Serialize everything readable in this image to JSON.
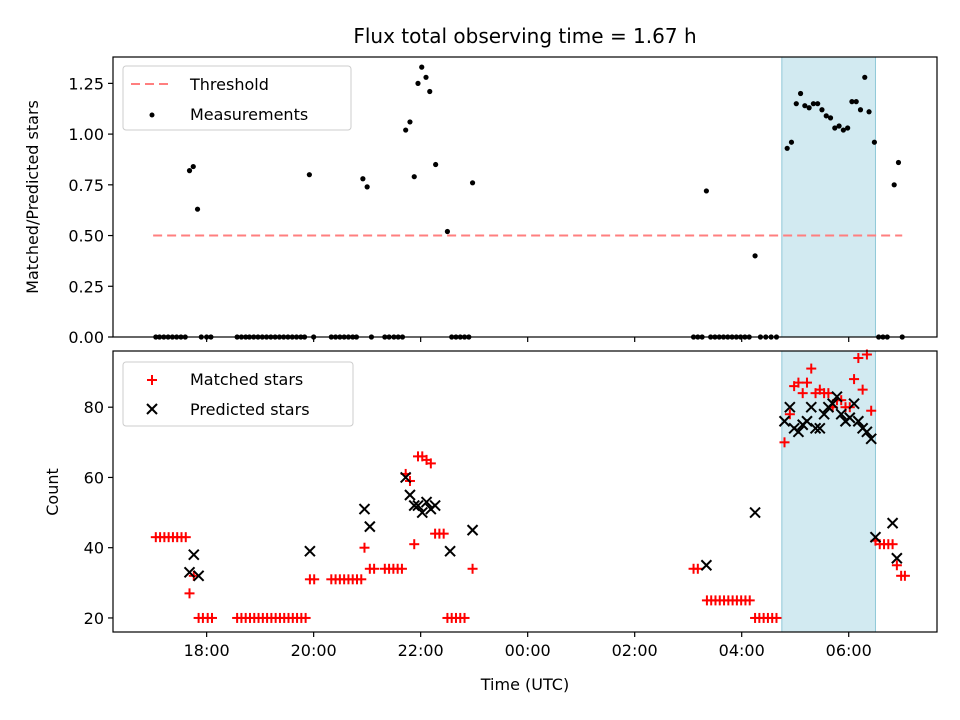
{
  "title": "Flux total observing time = 1.67 h",
  "colors": {
    "threshold": "#ff7f7f",
    "measurement": "#000000",
    "matched": "#ff0000",
    "predicted": "#000000",
    "highlight": "#add8e6"
  },
  "chart_data": [
    {
      "type": "scatter",
      "panel": "top",
      "ylabel": "Matched/Predicted stars",
      "xlabel": "",
      "ylim": [
        0,
        1.38
      ],
      "yticks": [
        "0.00",
        "0.25",
        "0.50",
        "0.75",
        "1.00",
        "1.25"
      ],
      "legend": {
        "placement": "top-left",
        "entries": [
          "Threshold",
          "Measurements"
        ]
      },
      "threshold": {
        "name": "Threshold",
        "value": 0.5,
        "x": [
          17.0,
          31.0
        ]
      },
      "highlight_span": [
        28.75,
        30.5
      ],
      "series": [
        {
          "name": "Measurements",
          "points": [
            [
              17.05,
              0
            ],
            [
              17.12,
              0
            ],
            [
              17.2,
              0
            ],
            [
              17.28,
              0
            ],
            [
              17.36,
              0
            ],
            [
              17.44,
              0
            ],
            [
              17.52,
              0
            ],
            [
              17.6,
              0
            ],
            [
              17.68,
              0.82
            ],
            [
              17.75,
              0.84
            ],
            [
              17.83,
              0.63
            ],
            [
              17.9,
              0
            ],
            [
              18.0,
              0
            ],
            [
              18.08,
              0
            ],
            [
              18.57,
              0
            ],
            [
              18.65,
              0
            ],
            [
              18.73,
              0
            ],
            [
              18.8,
              0
            ],
            [
              18.88,
              0
            ],
            [
              18.96,
              0
            ],
            [
              19.04,
              0
            ],
            [
              19.12,
              0
            ],
            [
              19.2,
              0
            ],
            [
              19.28,
              0
            ],
            [
              19.36,
              0
            ],
            [
              19.44,
              0
            ],
            [
              19.52,
              0
            ],
            [
              19.6,
              0
            ],
            [
              19.68,
              0
            ],
            [
              19.76,
              0
            ],
            [
              19.83,
              0
            ],
            [
              19.92,
              0.8
            ],
            [
              20.0,
              0
            ],
            [
              20.33,
              0
            ],
            [
              20.41,
              0
            ],
            [
              20.49,
              0
            ],
            [
              20.57,
              0
            ],
            [
              20.65,
              0
            ],
            [
              20.73,
              0
            ],
            [
              20.8,
              0
            ],
            [
              20.92,
              0.78
            ],
            [
              21.0,
              0.74
            ],
            [
              21.08,
              0
            ],
            [
              21.33,
              0
            ],
            [
              21.41,
              0
            ],
            [
              21.5,
              0
            ],
            [
              21.58,
              0
            ],
            [
              21.66,
              0
            ],
            [
              21.72,
              1.02
            ],
            [
              21.8,
              1.06
            ],
            [
              21.88,
              0.79
            ],
            [
              21.95,
              1.25
            ],
            [
              22.02,
              1.33
            ],
            [
              22.1,
              1.28
            ],
            [
              22.17,
              1.21
            ],
            [
              22.28,
              0.85
            ],
            [
              22.5,
              0.52
            ],
            [
              22.58,
              0
            ],
            [
              22.66,
              0
            ],
            [
              22.74,
              0
            ],
            [
              22.82,
              0
            ],
            [
              22.9,
              0
            ],
            [
              22.97,
              0.76
            ],
            [
              27.1,
              0
            ],
            [
              27.18,
              0
            ],
            [
              27.26,
              0
            ],
            [
              27.34,
              0.72
            ],
            [
              27.42,
              0
            ],
            [
              27.5,
              0
            ],
            [
              27.58,
              0
            ],
            [
              27.66,
              0
            ],
            [
              27.74,
              0
            ],
            [
              27.82,
              0
            ],
            [
              27.9,
              0
            ],
            [
              27.98,
              0
            ],
            [
              28.06,
              0
            ],
            [
              28.14,
              0
            ],
            [
              28.25,
              0.4
            ],
            [
              28.35,
              0
            ],
            [
              28.45,
              0
            ],
            [
              28.55,
              0
            ],
            [
              28.65,
              0
            ],
            [
              28.85,
              0.93
            ],
            [
              28.93,
              0.96
            ],
            [
              29.02,
              1.15
            ],
            [
              29.1,
              1.2
            ],
            [
              29.18,
              1.14
            ],
            [
              29.26,
              1.13
            ],
            [
              29.34,
              1.15
            ],
            [
              29.42,
              1.15
            ],
            [
              29.5,
              1.12
            ],
            [
              29.58,
              1.09
            ],
            [
              29.66,
              1.08
            ],
            [
              29.74,
              1.03
            ],
            [
              29.82,
              1.04
            ],
            [
              29.9,
              1.02
            ],
            [
              29.98,
              1.03
            ],
            [
              30.06,
              1.16
            ],
            [
              30.14,
              1.16
            ],
            [
              30.22,
              1.12
            ],
            [
              30.3,
              1.28
            ],
            [
              30.38,
              1.11
            ],
            [
              30.48,
              0.96
            ],
            [
              30.56,
              0
            ],
            [
              30.64,
              0
            ],
            [
              30.72,
              0
            ],
            [
              30.85,
              0.75
            ],
            [
              30.93,
              0.86
            ],
            [
              31.0,
              0
            ]
          ]
        }
      ]
    },
    {
      "type": "scatter",
      "panel": "bottom",
      "ylabel": "Count",
      "xlabel": "Time (UTC)",
      "ylim": [
        16,
        96
      ],
      "yticks": [
        "20",
        "40",
        "60",
        "80"
      ],
      "xticks": [
        "18:00",
        "20:00",
        "22:00",
        "00:00",
        "02:00",
        "04:00",
        "06:00"
      ],
      "legend": {
        "placement": "top-left",
        "entries": [
          "Matched stars",
          "Predicted stars"
        ]
      },
      "highlight_span": [
        28.75,
        30.5
      ],
      "series": [
        {
          "name": "Matched stars",
          "marker": "plus",
          "points": [
            [
              17.05,
              43
            ],
            [
              17.13,
              43
            ],
            [
              17.21,
              43
            ],
            [
              17.29,
              43
            ],
            [
              17.37,
              43
            ],
            [
              17.45,
              43
            ],
            [
              17.53,
              43
            ],
            [
              17.61,
              43
            ],
            [
              17.68,
              27
            ],
            [
              17.76,
              32
            ],
            [
              17.85,
              20
            ],
            [
              17.93,
              20
            ],
            [
              18.02,
              20
            ],
            [
              18.1,
              20
            ],
            [
              18.57,
              20
            ],
            [
              18.65,
              20
            ],
            [
              18.73,
              20
            ],
            [
              18.81,
              20
            ],
            [
              18.89,
              20
            ],
            [
              18.97,
              20
            ],
            [
              19.05,
              20
            ],
            [
              19.13,
              20
            ],
            [
              19.21,
              20
            ],
            [
              19.29,
              20
            ],
            [
              19.37,
              20
            ],
            [
              19.45,
              20
            ],
            [
              19.53,
              20
            ],
            [
              19.61,
              20
            ],
            [
              19.69,
              20
            ],
            [
              19.77,
              20
            ],
            [
              19.85,
              20
            ],
            [
              19.93,
              31
            ],
            [
              20.01,
              31
            ],
            [
              20.33,
              31
            ],
            [
              20.41,
              31
            ],
            [
              20.49,
              31
            ],
            [
              20.57,
              31
            ],
            [
              20.65,
              31
            ],
            [
              20.73,
              31
            ],
            [
              20.81,
              31
            ],
            [
              20.89,
              31
            ],
            [
              20.95,
              40
            ],
            [
              21.05,
              34
            ],
            [
              21.13,
              34
            ],
            [
              21.33,
              34
            ],
            [
              21.41,
              34
            ],
            [
              21.49,
              34
            ],
            [
              21.57,
              34
            ],
            [
              21.65,
              34
            ],
            [
              21.72,
              61
            ],
            [
              21.8,
              59
            ],
            [
              21.88,
              41
            ],
            [
              21.95,
              66
            ],
            [
              22.03,
              66
            ],
            [
              22.11,
              65
            ],
            [
              22.19,
              64
            ],
            [
              22.27,
              44
            ],
            [
              22.35,
              44
            ],
            [
              22.43,
              44
            ],
            [
              22.5,
              20
            ],
            [
              22.58,
              20
            ],
            [
              22.66,
              20
            ],
            [
              22.74,
              20
            ],
            [
              22.82,
              20
            ],
            [
              22.97,
              34
            ],
            [
              27.1,
              34
            ],
            [
              27.18,
              34
            ],
            [
              27.35,
              25
            ],
            [
              27.43,
              25
            ],
            [
              27.51,
              25
            ],
            [
              27.59,
              25
            ],
            [
              27.67,
              25
            ],
            [
              27.75,
              25
            ],
            [
              27.83,
              25
            ],
            [
              27.91,
              25
            ],
            [
              27.99,
              25
            ],
            [
              28.07,
              25
            ],
            [
              28.15,
              25
            ],
            [
              28.25,
              20
            ],
            [
              28.33,
              20
            ],
            [
              28.41,
              20
            ],
            [
              28.49,
              20
            ],
            [
              28.57,
              20
            ],
            [
              28.65,
              20
            ],
            [
              28.8,
              70
            ],
            [
              28.9,
              78
            ],
            [
              28.98,
              86
            ],
            [
              29.06,
              87
            ],
            [
              29.14,
              84
            ],
            [
              29.22,
              87
            ],
            [
              29.3,
              91
            ],
            [
              29.38,
              84
            ],
            [
              29.46,
              85
            ],
            [
              29.54,
              84
            ],
            [
              29.62,
              84
            ],
            [
              29.7,
              80
            ],
            [
              29.78,
              82
            ],
            [
              29.86,
              82
            ],
            [
              29.94,
              80
            ],
            [
              30.02,
              80
            ],
            [
              30.1,
              88
            ],
            [
              30.18,
              94
            ],
            [
              30.26,
              85
            ],
            [
              30.34,
              95
            ],
            [
              30.42,
              79
            ],
            [
              30.5,
              42
            ],
            [
              30.58,
              41
            ],
            [
              30.66,
              41
            ],
            [
              30.74,
              41
            ],
            [
              30.82,
              41
            ],
            [
              30.9,
              35
            ],
            [
              30.98,
              32
            ],
            [
              31.05,
              32
            ]
          ]
        },
        {
          "name": "Predicted stars",
          "marker": "x",
          "points": [
            [
              17.68,
              33
            ],
            [
              17.76,
              38
            ],
            [
              17.85,
              32
            ],
            [
              19.93,
              39
            ],
            [
              20.95,
              51
            ],
            [
              21.05,
              46
            ],
            [
              21.72,
              60
            ],
            [
              21.8,
              55
            ],
            [
              21.88,
              52
            ],
            [
              21.95,
              52
            ],
            [
              22.03,
              50
            ],
            [
              22.11,
              53
            ],
            [
              22.19,
              51
            ],
            [
              22.27,
              52
            ],
            [
              22.55,
              39
            ],
            [
              22.97,
              45
            ],
            [
              27.34,
              35
            ],
            [
              28.25,
              50
            ],
            [
              28.8,
              76
            ],
            [
              28.9,
              80
            ],
            [
              28.98,
              74
            ],
            [
              29.06,
              73
            ],
            [
              29.14,
              75
            ],
            [
              29.22,
              76
            ],
            [
              29.3,
              80
            ],
            [
              29.38,
              74
            ],
            [
              29.46,
              74
            ],
            [
              29.54,
              78
            ],
            [
              29.62,
              80
            ],
            [
              29.7,
              81
            ],
            [
              29.78,
              83
            ],
            [
              29.86,
              78
            ],
            [
              29.94,
              76
            ],
            [
              30.02,
              77
            ],
            [
              30.1,
              81
            ],
            [
              30.18,
              76
            ],
            [
              30.26,
              74
            ],
            [
              30.34,
              73
            ],
            [
              30.42,
              71
            ],
            [
              30.5,
              43
            ],
            [
              30.82,
              47
            ],
            [
              30.9,
              37
            ]
          ]
        }
      ]
    }
  ]
}
